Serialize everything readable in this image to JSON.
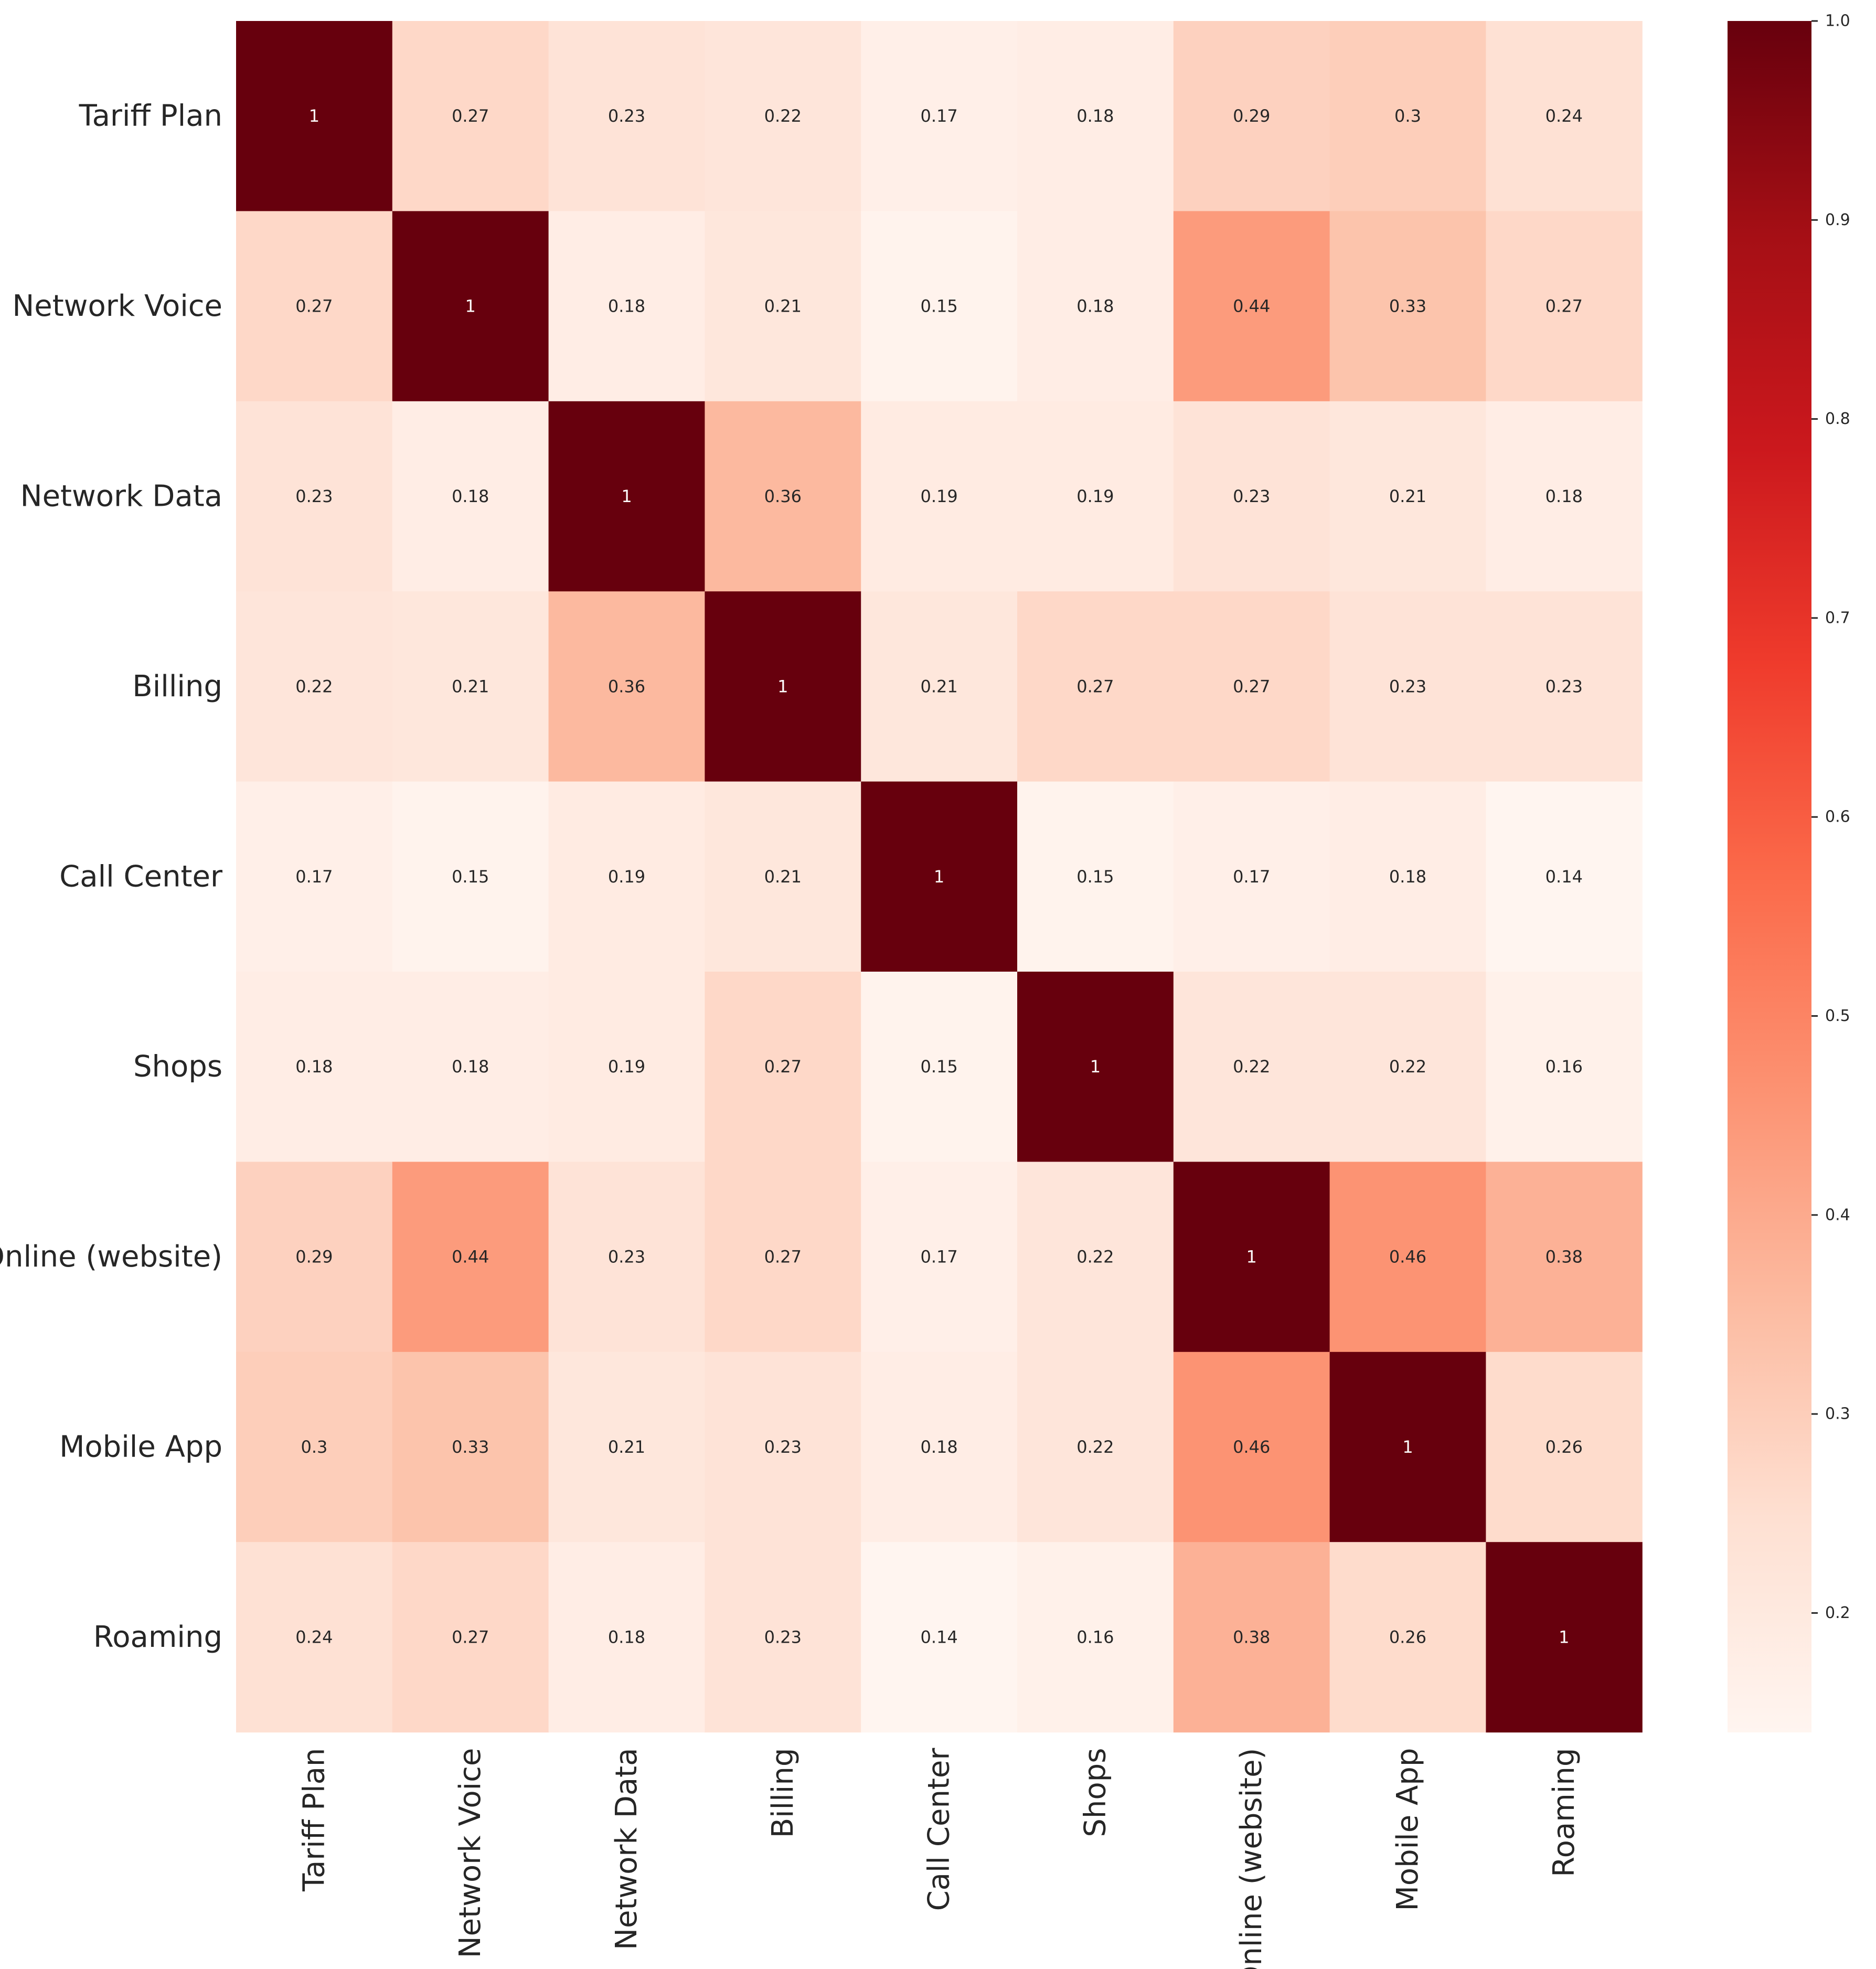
{
  "chart_data": {
    "type": "heatmap",
    "title": "",
    "xlabel": "",
    "ylabel": "",
    "rows": [
      "Tariff Plan",
      "Network Voice",
      "Network Data",
      "Billing",
      "Call Center",
      "Shops",
      "Online (website)",
      "Mobile App",
      "Roaming"
    ],
    "columns": [
      "Tariff Plan",
      "Network Voice",
      "Network Data",
      "Billing",
      "Call Center",
      "Shops",
      "Online (website)",
      "Mobile App",
      "Roaming"
    ],
    "values": [
      [
        1,
        0.27,
        0.23,
        0.22,
        0.17,
        0.18,
        0.29,
        0.3,
        0.24
      ],
      [
        0.27,
        1,
        0.18,
        0.21,
        0.15,
        0.18,
        0.44,
        0.33,
        0.27
      ],
      [
        0.23,
        0.18,
        1,
        0.36,
        0.19,
        0.19,
        0.23,
        0.21,
        0.18
      ],
      [
        0.22,
        0.21,
        0.36,
        1,
        0.21,
        0.27,
        0.27,
        0.23,
        0.23
      ],
      [
        0.17,
        0.15,
        0.19,
        0.21,
        1,
        0.15,
        0.17,
        0.18,
        0.14
      ],
      [
        0.18,
        0.18,
        0.19,
        0.27,
        0.15,
        1,
        0.22,
        0.22,
        0.16
      ],
      [
        0.29,
        0.44,
        0.23,
        0.27,
        0.17,
        0.22,
        1,
        0.46,
        0.38
      ],
      [
        0.3,
        0.33,
        0.21,
        0.23,
        0.18,
        0.22,
        0.46,
        1,
        0.26
      ],
      [
        0.24,
        0.27,
        0.18,
        0.23,
        0.14,
        0.16,
        0.38,
        0.26,
        1
      ]
    ],
    "annotated": true,
    "colormap": "Reds",
    "colorbar": {
      "range": [
        0.14,
        1.0
      ],
      "ticks": [
        "1.0",
        "0.9",
        "0.8",
        "0.7",
        "0.6",
        "0.5",
        "0.4",
        "0.3",
        "0.2"
      ],
      "tick_values": [
        1.0,
        0.9,
        0.8,
        0.7,
        0.6,
        0.5,
        0.4,
        0.3,
        0.2
      ],
      "placement": "right"
    },
    "grid": false
  }
}
